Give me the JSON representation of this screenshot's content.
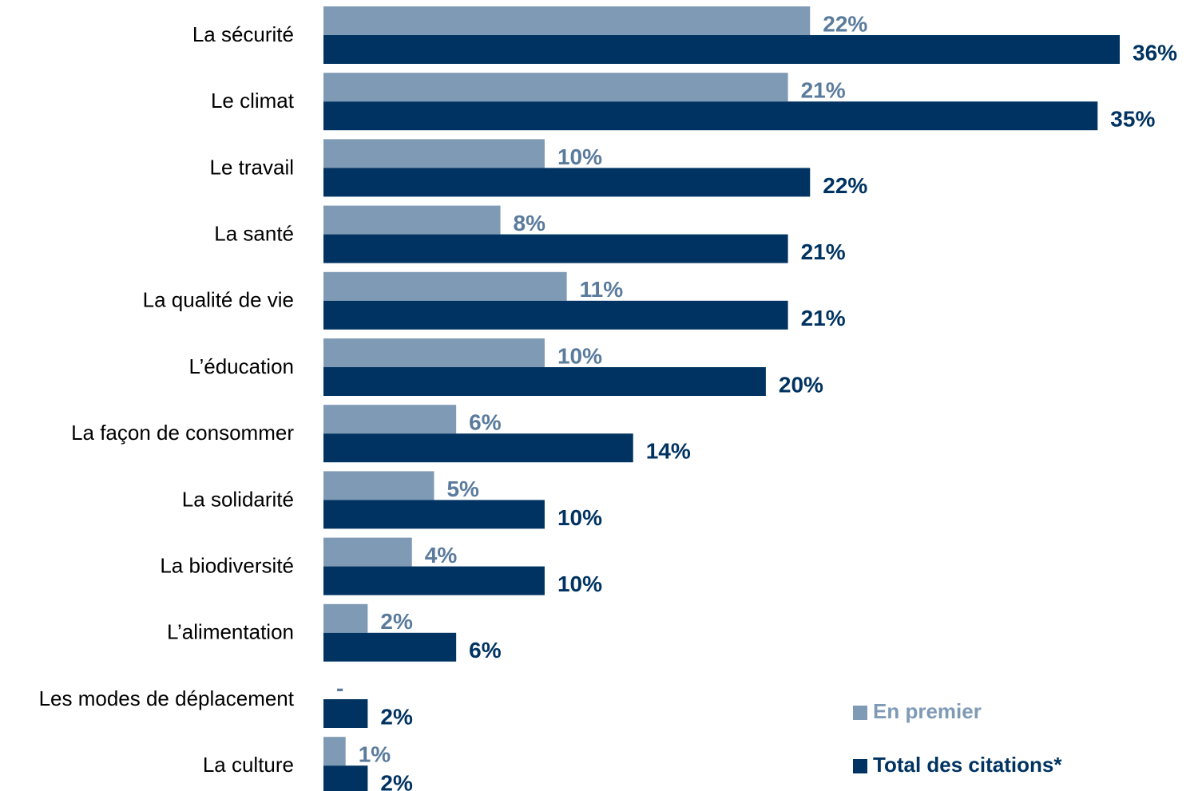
{
  "chart_data": {
    "type": "bar",
    "orientation": "horizontal",
    "categories": [
      "La sécurité",
      "Le climat",
      "Le travail",
      "La santé",
      "La qualité de vie",
      "L’éducation",
      "La façon de consommer",
      "La solidarité",
      "La biodiversité",
      "L’alimentation",
      "Les modes de déplacement",
      "La culture"
    ],
    "series": [
      {
        "name": "En premier",
        "color": "#7f9ab5",
        "label_color": "#5a7b9c",
        "values": [
          22,
          21,
          10,
          8,
          11,
          10,
          6,
          5,
          4,
          2,
          null,
          1
        ],
        "value_labels": [
          "22%",
          "21%",
          "10%",
          "8%",
          "11%",
          "10%",
          "6%",
          "5%",
          "4%",
          "2%",
          "-",
          "1%"
        ]
      },
      {
        "name": "Total des citations*",
        "color": "#003361",
        "label_color": "#003361",
        "values": [
          36,
          35,
          22,
          21,
          21,
          20,
          14,
          10,
          10,
          6,
          2,
          2
        ],
        "value_labels": [
          "36%",
          "35%",
          "22%",
          "21%",
          "21%",
          "20%",
          "14%",
          "10%",
          "10%",
          "6%",
          "2%",
          "2%"
        ]
      }
    ],
    "legend": "bottom-right",
    "grid": false
  }
}
